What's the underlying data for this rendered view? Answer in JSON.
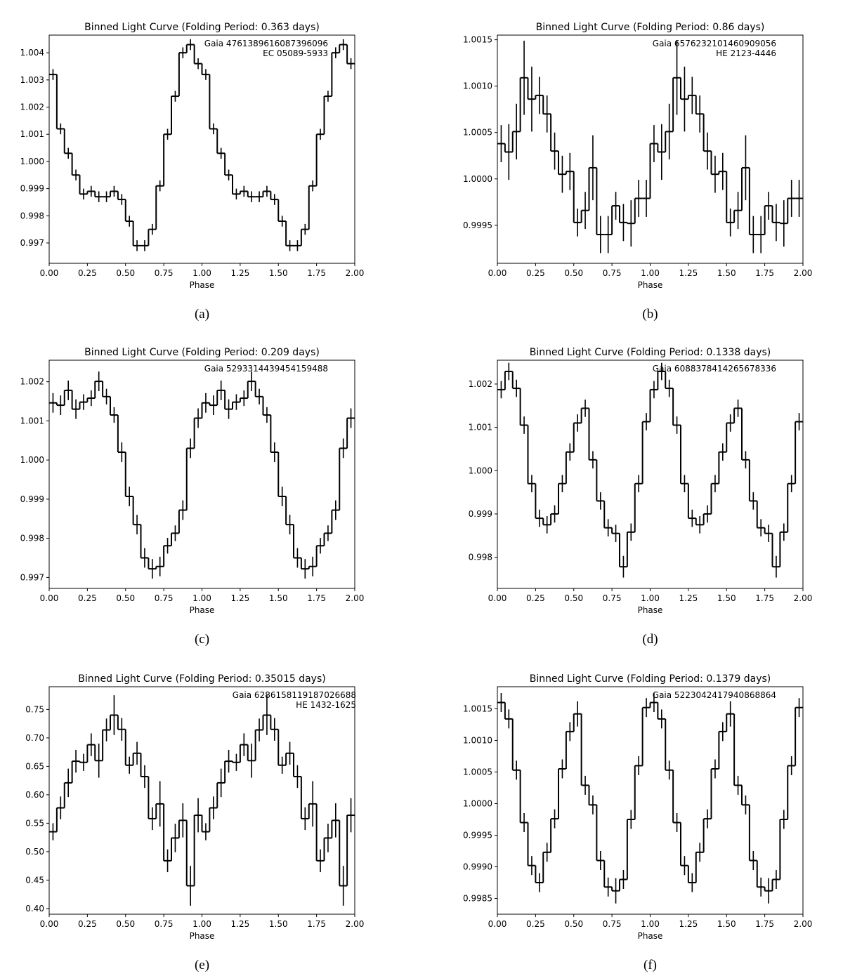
{
  "chart_data": [
    {
      "type": "step",
      "title": "Binned Light Curve (Folding Period: 0.363 days)",
      "annotations": [
        "Gaia 4761389616087396096",
        "EC 05089-5933"
      ],
      "x_label": "Phase",
      "caption": "(a)",
      "x": [
        0.025,
        0.075,
        0.125,
        0.175,
        0.225,
        0.275,
        0.325,
        0.375,
        0.425,
        0.475,
        0.525,
        0.575,
        0.625,
        0.675,
        0.725,
        0.775,
        0.825,
        0.875,
        0.925,
        0.975,
        1.025,
        1.075,
        1.125,
        1.175,
        1.225,
        1.275,
        1.325,
        1.375,
        1.425,
        1.475,
        1.525,
        1.575,
        1.625,
        1.675,
        1.725,
        1.775,
        1.825,
        1.875,
        1.925,
        1.975
      ],
      "values": [
        1.0032,
        1.0012,
        1.0003,
        0.9995,
        0.9988,
        0.9989,
        0.9987,
        0.9987,
        0.9989,
        0.9986,
        0.9978,
        0.9969,
        0.9969,
        0.9975,
        0.9991,
        1.001,
        1.0024,
        1.004,
        1.0043,
        1.0036,
        1.0032,
        1.0012,
        1.0003,
        0.9995,
        0.9988,
        0.9989,
        0.9987,
        0.9987,
        0.9989,
        0.9986,
        0.9978,
        0.9969,
        0.9969,
        0.9975,
        0.9991,
        1.001,
        1.0024,
        1.004,
        1.0043,
        1.0036
      ],
      "errors": [
        0.0002,
        0.0002,
        0.0002,
        0.0002,
        0.0002,
        0.0002,
        0.0002,
        0.0002,
        0.0002,
        0.0002,
        0.0002,
        0.0002,
        0.0002,
        0.0002,
        0.0002,
        0.0002,
        0.0002,
        0.0002,
        0.0002,
        0.0002,
        0.0002,
        0.0002,
        0.0002,
        0.0002,
        0.0002,
        0.0002,
        0.0002,
        0.0002,
        0.0002,
        0.0002,
        0.0002,
        0.0002,
        0.0002,
        0.0002,
        0.0002,
        0.0002,
        0.0002,
        0.0002,
        0.0002,
        0.0002
      ],
      "color": "#000000",
      "xlim": [
        0,
        2
      ],
      "ylim": [
        0.99625,
        1.00465
      ],
      "xticks": [
        {
          "value": 0,
          "label": "0.00"
        },
        {
          "value": 0.25,
          "label": "0.25"
        },
        {
          "value": 0.5,
          "label": "0.50"
        },
        {
          "value": 0.75,
          "label": "0.75"
        },
        {
          "value": 1,
          "label": "1.00"
        },
        {
          "value": 1.25,
          "label": "1.25"
        },
        {
          "value": 1.5,
          "label": "1.50"
        },
        {
          "value": 1.75,
          "label": "1.75"
        },
        {
          "value": 2,
          "label": "2.00"
        }
      ],
      "yticks": [
        0.997,
        0.998,
        0.999,
        {
          "value": 1,
          "label": "1.000"
        },
        1.001,
        1.002,
        1.003,
        1.004
      ]
    },
    {
      "type": "step",
      "title": "Binned Light Curve (Folding Period: 0.86 days)",
      "annotations": [
        "Gaia 6576232101460909056",
        "HE 2123-4446"
      ],
      "x_label": "Phase",
      "caption": "(b)",
      "x": [
        0.025,
        0.075,
        0.125,
        0.175,
        0.225,
        0.275,
        0.325,
        0.375,
        0.425,
        0.475,
        0.525,
        0.575,
        0.625,
        0.675,
        0.725,
        0.775,
        0.825,
        0.875,
        0.925,
        0.975,
        1.025,
        1.075,
        1.125,
        1.175,
        1.225,
        1.275,
        1.325,
        1.375,
        1.425,
        1.475,
        1.525,
        1.575,
        1.625,
        1.675,
        1.725,
        1.775,
        1.825,
        1.875,
        1.925,
        1.975
      ],
      "values": [
        1.00038,
        1.00029,
        1.00051,
        1.00109,
        1.00086,
        1.0009,
        1.0007,
        1.0003,
        1.00005,
        1.00008,
        0.99953,
        0.99966,
        1.00012,
        0.9994,
        0.9994,
        0.99971,
        0.99953,
        0.99952,
        0.99979,
        0.99979,
        1.00038,
        1.00029,
        1.00051,
        1.00109,
        1.00086,
        1.0009,
        1.0007,
        1.0003,
        1.00005,
        1.00008,
        0.99953,
        0.99966,
        1.00012,
        0.9994,
        0.9994,
        0.99971,
        0.99953,
        0.99952,
        0.99979,
        0.99979
      ],
      "errors": [
        0.0002,
        0.0003,
        0.0003,
        0.0004,
        0.00035,
        0.0002,
        0.0002,
        0.0002,
        0.0002,
        0.0002,
        0.00015,
        0.0002,
        0.00035,
        0.0002,
        0.0002,
        0.00015,
        0.0002,
        0.00025,
        0.0002,
        0.0002,
        0.0002,
        0.0003,
        0.0003,
        0.0004,
        0.00035,
        0.0002,
        0.0002,
        0.0002,
        0.0002,
        0.0002,
        0.00015,
        0.0002,
        0.00035,
        0.0002,
        0.0002,
        0.00015,
        0.0002,
        0.00025,
        0.0002,
        0.0002
      ],
      "color": "#000000",
      "xlim": [
        0,
        2
      ],
      "ylim": [
        0.99909,
        1.00155
      ],
      "xticks": [
        {
          "value": 0,
          "label": "0.00"
        },
        {
          "value": 0.25,
          "label": "0.25"
        },
        {
          "value": 0.5,
          "label": "0.50"
        },
        {
          "value": 0.75,
          "label": "0.75"
        },
        {
          "value": 1,
          "label": "1.00"
        },
        {
          "value": 1.25,
          "label": "1.25"
        },
        {
          "value": 1.5,
          "label": "1.50"
        },
        {
          "value": 1.75,
          "label": "1.75"
        },
        {
          "value": 2,
          "label": "2.00"
        }
      ],
      "yticks": [
        0.9995,
        {
          "value": 1,
          "label": "1.0000"
        },
        1.0005,
        {
          "value": 1.001,
          "label": "1.0010"
        },
        1.0015
      ]
    },
    {
      "type": "step",
      "title": "Binned Light Curve (Folding Period: 0.209 days)",
      "annotations": [
        "Gaia 5293314439454159488"
      ],
      "x_label": "Phase",
      "caption": "(c)",
      "x": [
        0.025,
        0.075,
        0.125,
        0.175,
        0.225,
        0.275,
        0.325,
        0.375,
        0.425,
        0.475,
        0.525,
        0.575,
        0.625,
        0.675,
        0.725,
        0.775,
        0.825,
        0.875,
        0.925,
        0.975,
        1.025,
        1.075,
        1.125,
        1.175,
        1.225,
        1.275,
        1.325,
        1.375,
        1.425,
        1.475,
        1.525,
        1.575,
        1.625,
        1.675,
        1.725,
        1.775,
        1.825,
        1.875,
        1.925,
        1.975
      ],
      "values": [
        1.00146,
        1.0014,
        1.00178,
        1.0013,
        1.00148,
        1.00158,
        1.00201,
        1.00162,
        1.00115,
        1.0002,
        0.99907,
        0.99835,
        0.9975,
        0.99722,
        0.99728,
        0.99781,
        0.99813,
        0.99872,
        1.0003,
        1.00107,
        1.00146,
        1.0014,
        1.00178,
        1.0013,
        1.00148,
        1.00158,
        1.00201,
        1.00162,
        1.00115,
        1.0002,
        0.99907,
        0.99835,
        0.9975,
        0.99722,
        0.99728,
        0.99781,
        0.99813,
        0.99872,
        1.0003,
        1.00107
      ],
      "errors": [
        0.00025,
        0.00025,
        0.00025,
        0.00025,
        0.0002,
        0.0002,
        0.00025,
        0.0002,
        0.0002,
        0.00025,
        0.00025,
        0.00025,
        0.00025,
        0.00025,
        0.00025,
        0.0002,
        0.0002,
        0.00025,
        0.00025,
        0.00025,
        0.00025,
        0.00025,
        0.00025,
        0.00025,
        0.0002,
        0.0002,
        0.00025,
        0.0002,
        0.0002,
        0.00025,
        0.00025,
        0.00025,
        0.00025,
        0.00025,
        0.00025,
        0.0002,
        0.0002,
        0.00025,
        0.00025,
        0.00025
      ],
      "color": "#000000",
      "xlim": [
        0,
        2
      ],
      "ylim": [
        0.99672,
        1.00255
      ],
      "xticks": [
        {
          "value": 0,
          "label": "0.00"
        },
        {
          "value": 0.25,
          "label": "0.25"
        },
        {
          "value": 0.5,
          "label": "0.50"
        },
        {
          "value": 0.75,
          "label": "0.75"
        },
        {
          "value": 1,
          "label": "1.00"
        },
        {
          "value": 1.25,
          "label": "1.25"
        },
        {
          "value": 1.5,
          "label": "1.50"
        },
        {
          "value": 1.75,
          "label": "1.75"
        },
        {
          "value": 2,
          "label": "2.00"
        }
      ],
      "yticks": [
        0.997,
        0.998,
        0.999,
        {
          "value": 1,
          "label": "1.000"
        },
        1.001,
        1.002
      ]
    },
    {
      "type": "step",
      "title": "Binned Light Curve (Folding Period: 0.1338 days)",
      "annotations": [
        "Gaia 6088378414265678336"
      ],
      "x_label": "Phase",
      "caption": "(d)",
      "x": [
        0.025,
        0.075,
        0.125,
        0.175,
        0.225,
        0.275,
        0.325,
        0.375,
        0.425,
        0.475,
        0.525,
        0.575,
        0.625,
        0.675,
        0.725,
        0.775,
        0.825,
        0.875,
        0.925,
        0.975,
        1.025,
        1.075,
        1.125,
        1.175,
        1.225,
        1.275,
        1.325,
        1.375,
        1.425,
        1.475,
        1.525,
        1.575,
        1.625,
        1.675,
        1.725,
        1.775,
        1.825,
        1.875,
        1.925,
        1.975
      ],
      "values": [
        1.00187,
        1.00229,
        1.0019,
        1.00105,
        0.9997,
        0.9989,
        0.99875,
        0.999,
        0.9997,
        1.00043,
        1.0011,
        1.00144,
        1.00025,
        0.9993,
        0.99868,
        0.99855,
        0.99778,
        0.99858,
        0.9997,
        1.00113,
        1.00187,
        1.00229,
        1.0019,
        1.00105,
        0.9997,
        0.9989,
        0.99875,
        0.999,
        0.9997,
        1.00043,
        1.0011,
        1.00144,
        1.00025,
        0.9993,
        0.99868,
        0.99855,
        0.99778,
        0.99858,
        0.9997,
        1.00113
      ],
      "errors": [
        0.0002,
        0.0002,
        0.0002,
        0.0002,
        0.0002,
        0.0002,
        0.0002,
        0.0002,
        0.0002,
        0.0002,
        0.0002,
        0.0002,
        0.0002,
        0.0002,
        0.0002,
        0.0002,
        0.00025,
        0.0002,
        0.0002,
        0.0002,
        0.0002,
        0.0002,
        0.0002,
        0.0002,
        0.0002,
        0.0002,
        0.0002,
        0.0002,
        0.0002,
        0.0002,
        0.0002,
        0.0002,
        0.0002,
        0.0002,
        0.0002,
        0.0002,
        0.00025,
        0.0002,
        0.0002,
        0.0002
      ],
      "color": "#000000",
      "xlim": [
        0,
        2
      ],
      "ylim": [
        0.99728,
        1.00255
      ],
      "xticks": [
        {
          "value": 0,
          "label": "0.00"
        },
        {
          "value": 0.25,
          "label": "0.25"
        },
        {
          "value": 0.5,
          "label": "0.50"
        },
        {
          "value": 0.75,
          "label": "0.75"
        },
        {
          "value": 1,
          "label": "1.00"
        },
        {
          "value": 1.25,
          "label": "1.25"
        },
        {
          "value": 1.5,
          "label": "1.50"
        },
        {
          "value": 1.75,
          "label": "1.75"
        },
        {
          "value": 2,
          "label": "2.00"
        }
      ],
      "yticks": [
        0.998,
        0.999,
        {
          "value": 1,
          "label": "1.000"
        },
        1.001,
        1.002
      ]
    },
    {
      "type": "step",
      "title": "Binned Light Curve (Folding Period: 0.35015 days)",
      "annotations": [
        "Gaia 6286158119187026688",
        "HE 1432-1625"
      ],
      "x_label": "Phase",
      "caption": "(e)",
      "x": [
        0.025,
        0.075,
        0.125,
        0.175,
        0.225,
        0.275,
        0.325,
        0.375,
        0.425,
        0.475,
        0.525,
        0.575,
        0.625,
        0.675,
        0.725,
        0.775,
        0.825,
        0.875,
        0.925,
        0.975,
        1.025,
        1.075,
        1.125,
        1.175,
        1.225,
        1.275,
        1.325,
        1.375,
        1.425,
        1.475,
        1.525,
        1.575,
        1.625,
        1.675,
        1.725,
        1.775,
        1.825,
        1.875,
        1.925,
        1.975
      ],
      "values": [
        0.535,
        0.577,
        0.621,
        0.659,
        0.657,
        0.688,
        0.66,
        0.714,
        0.74,
        0.715,
        0.652,
        0.673,
        0.632,
        0.558,
        0.584,
        0.484,
        0.524,
        0.555,
        0.44,
        0.564,
        0.535,
        0.577,
        0.621,
        0.659,
        0.657,
        0.688,
        0.66,
        0.714,
        0.74,
        0.715,
        0.652,
        0.673,
        0.632,
        0.558,
        0.584,
        0.484,
        0.524,
        0.555,
        0.44,
        0.564
      ],
      "errors": [
        0.015,
        0.02,
        0.025,
        0.02,
        0.015,
        0.02,
        0.03,
        0.02,
        0.035,
        0.02,
        0.015,
        0.02,
        0.02,
        0.02,
        0.04,
        0.02,
        0.025,
        0.03,
        0.035,
        0.03,
        0.015,
        0.02,
        0.025,
        0.02,
        0.015,
        0.02,
        0.03,
        0.02,
        0.035,
        0.02,
        0.015,
        0.02,
        0.02,
        0.02,
        0.04,
        0.02,
        0.025,
        0.03,
        0.035,
        0.03
      ],
      "color": "#000000",
      "xlim": [
        0,
        2
      ],
      "ylim": [
        0.39,
        0.79
      ],
      "xticks": [
        {
          "value": 0,
          "label": "0.00"
        },
        {
          "value": 0.25,
          "label": "0.25"
        },
        {
          "value": 0.5,
          "label": "0.50"
        },
        {
          "value": 0.75,
          "label": "0.75"
        },
        {
          "value": 1,
          "label": "1.00"
        },
        {
          "value": 1.25,
          "label": "1.25"
        },
        {
          "value": 1.5,
          "label": "1.50"
        },
        {
          "value": 1.75,
          "label": "1.75"
        },
        {
          "value": 2,
          "label": "2.00"
        }
      ],
      "yticks": [
        {
          "value": 0.4,
          "label": "0.40"
        },
        0.45,
        {
          "value": 0.5,
          "label": "0.50"
        },
        0.55,
        {
          "value": 0.6,
          "label": "0.60"
        },
        0.65,
        {
          "value": 0.7,
          "label": "0.70"
        },
        0.75
      ]
    },
    {
      "type": "step",
      "title": "Binned Light Curve (Folding Period: 0.1379 days)",
      "annotations": [
        "Gaia 5223042417940868864"
      ],
      "x_label": "Phase",
      "caption": "(f)",
      "x": [
        0.025,
        0.075,
        0.125,
        0.175,
        0.225,
        0.275,
        0.325,
        0.375,
        0.425,
        0.475,
        0.525,
        0.575,
        0.625,
        0.675,
        0.725,
        0.775,
        0.825,
        0.875,
        0.925,
        0.975,
        1.025,
        1.075,
        1.125,
        1.175,
        1.225,
        1.275,
        1.325,
        1.375,
        1.425,
        1.475,
        1.525,
        1.575,
        1.625,
        1.675,
        1.725,
        1.775,
        1.825,
        1.875,
        1.925,
        1.975
      ],
      "values": [
        1.0016,
        1.00134,
        1.00053,
        0.9997,
        0.99902,
        0.99875,
        0.99923,
        0.99976,
        1.00055,
        1.00114,
        1.00142,
        1.00029,
        0.99998,
        0.9991,
        0.99868,
        0.99862,
        0.9988,
        0.99975,
        1.0006,
        1.00152,
        1.0016,
        1.00134,
        1.00053,
        0.9997,
        0.99902,
        0.99875,
        0.99923,
        0.99976,
        1.00055,
        1.00114,
        1.00142,
        1.00029,
        0.99998,
        0.9991,
        0.99868,
        0.99862,
        0.9988,
        0.99975,
        1.0006,
        1.00152
      ],
      "errors": [
        0.00015,
        0.00015,
        0.00015,
        0.00015,
        0.00015,
        0.00015,
        0.00015,
        0.00015,
        0.00015,
        0.00015,
        0.0002,
        0.00015,
        0.00015,
        0.00015,
        0.00015,
        0.0002,
        0.00015,
        0.00015,
        0.00015,
        0.00015,
        0.00015,
        0.00015,
        0.00015,
        0.00015,
        0.00015,
        0.00015,
        0.00015,
        0.00015,
        0.00015,
        0.00015,
        0.0002,
        0.00015,
        0.00015,
        0.00015,
        0.00015,
        0.0002,
        0.00015,
        0.00015,
        0.00015,
        0.00015
      ],
      "color": "#000000",
      "xlim": [
        0,
        2
      ],
      "ylim": [
        0.99825,
        1.00185
      ],
      "xticks": [
        {
          "value": 0,
          "label": "0.00"
        },
        {
          "value": 0.25,
          "label": "0.25"
        },
        {
          "value": 0.5,
          "label": "0.50"
        },
        {
          "value": 0.75,
          "label": "0.75"
        },
        {
          "value": 1,
          "label": "1.00"
        },
        {
          "value": 1.25,
          "label": "1.25"
        },
        {
          "value": 1.5,
          "label": "1.50"
        },
        {
          "value": 1.75,
          "label": "1.75"
        },
        {
          "value": 2,
          "label": "2.00"
        }
      ],
      "yticks": [
        0.9985,
        {
          "value": 0.999,
          "label": "0.9990"
        },
        0.9995,
        {
          "value": 1,
          "label": "1.0000"
        },
        1.0005,
        {
          "value": 1.001,
          "label": "1.0010"
        },
        1.0015
      ]
    }
  ]
}
